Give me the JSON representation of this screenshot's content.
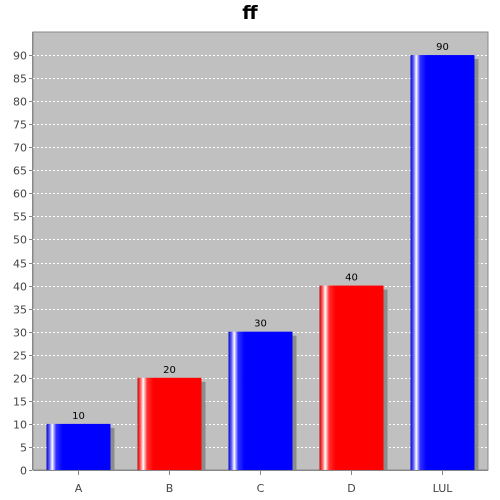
{
  "chart_data": {
    "type": "bar",
    "title": "ff",
    "xlabel": "",
    "ylabel": "",
    "categories": [
      "A",
      "B",
      "C",
      "D",
      "LUL"
    ],
    "values": [
      10,
      20,
      30,
      40,
      90
    ],
    "bar_colors": [
      "#0000ff",
      "#ff0000",
      "#0000ff",
      "#ff0000",
      "#0000ff"
    ],
    "ylim": [
      0,
      95
    ],
    "yticks": [
      0,
      5,
      10,
      15,
      20,
      25,
      30,
      35,
      40,
      45,
      50,
      55,
      60,
      65,
      70,
      75,
      80,
      85,
      90
    ],
    "grid": true,
    "legend": "none",
    "plot_background": "#c0c0c0"
  }
}
